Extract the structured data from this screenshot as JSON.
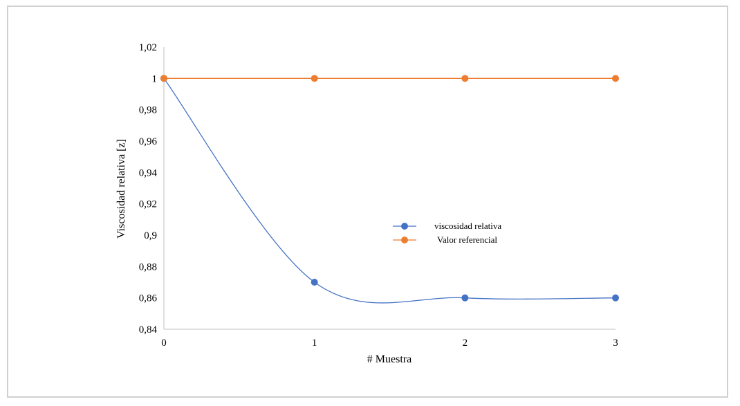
{
  "chart_data": {
    "type": "line",
    "xlabel": "# Muestra",
    "ylabel": "Viscosidad relativa [z]",
    "x": [
      0,
      1,
      2,
      3
    ],
    "xticks": [
      "0",
      "1",
      "2",
      "3"
    ],
    "ylim": [
      0.84,
      1.02
    ],
    "yticks": [
      "0,84",
      "0,86",
      "0,88",
      "0,9",
      "0,92",
      "0,94",
      "0,96",
      "0,98",
      "1",
      "1,02"
    ],
    "yticks_values": [
      0.84,
      0.86,
      0.88,
      0.9,
      0.92,
      0.94,
      0.96,
      0.98,
      1.0,
      1.02
    ],
    "grid": false,
    "legend_position": "center-right",
    "series": [
      {
        "name": "viscosidad relativa",
        "values": [
          1.0,
          0.87,
          0.86,
          0.86
        ],
        "color": "#4472c4",
        "smooth": true
      },
      {
        "name": "Valor referencial",
        "values": [
          1.0,
          1.0,
          1.0,
          1.0
        ],
        "color": "#ed7d31",
        "smooth": false
      }
    ]
  }
}
